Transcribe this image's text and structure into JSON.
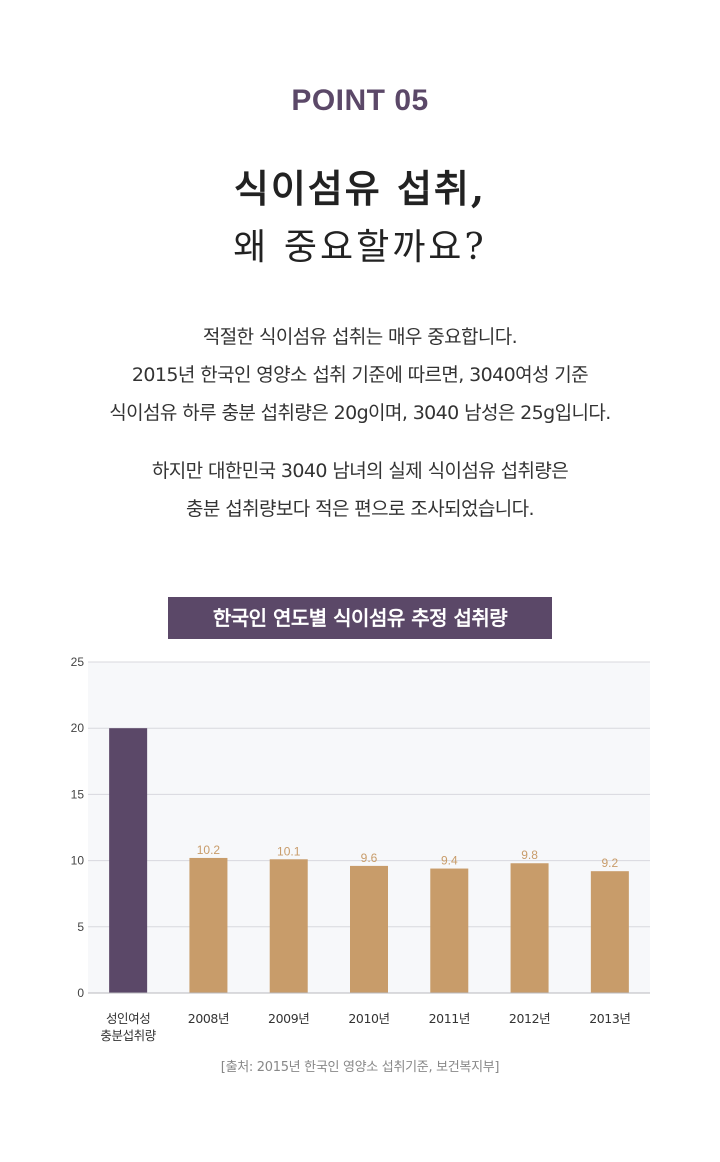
{
  "header": {
    "point_label": "POINT 05",
    "title_line1": "식이섬유 섭취,",
    "title_line2": "왜 중요할까요?"
  },
  "intro": {
    "lines": [
      "적절한 식이섬유 섭취는 매우 중요합니다.",
      "2015년 한국인 영양소 섭취 기준에 따르면, 3040여성 기준",
      "식이섬유 하루 충분 섭취량은 20g이며, 3040 남성은 25g입니다."
    ],
    "lines2": [
      "하지만 대한민국 3040 남녀의 실제 식이섬유 섭취량은",
      "충분 섭취량보다 적은 편으로 조사되었습니다."
    ]
  },
  "colors": {
    "accent": "#5b4868",
    "bar": "#c89c6a",
    "plot_bg": "#f7f8fa",
    "grid": "#d8d9de"
  },
  "chart_data": {
    "type": "bar",
    "title": "한국인 연도별 식이섬유 추정 섭취량",
    "categories": [
      "성인여성\n충분섭취량",
      "2008년",
      "2009년",
      "2010년",
      "2011년",
      "2012년",
      "2013년"
    ],
    "values": [
      20,
      10.2,
      10.1,
      9.6,
      9.4,
      9.8,
      9.2
    ],
    "data_labels": [
      "",
      "10.2",
      "10.1",
      "9.6",
      "9.4",
      "9.8",
      "9.2"
    ],
    "highlight_index": 0,
    "ylim": [
      0,
      25
    ],
    "yticks": [
      0,
      5,
      10,
      15,
      20,
      25
    ],
    "grid": true,
    "xlabel": "",
    "ylabel": ""
  },
  "source_note": "[출처: 2015년 한국인 영양소 섭취기준, 보건복지부]"
}
